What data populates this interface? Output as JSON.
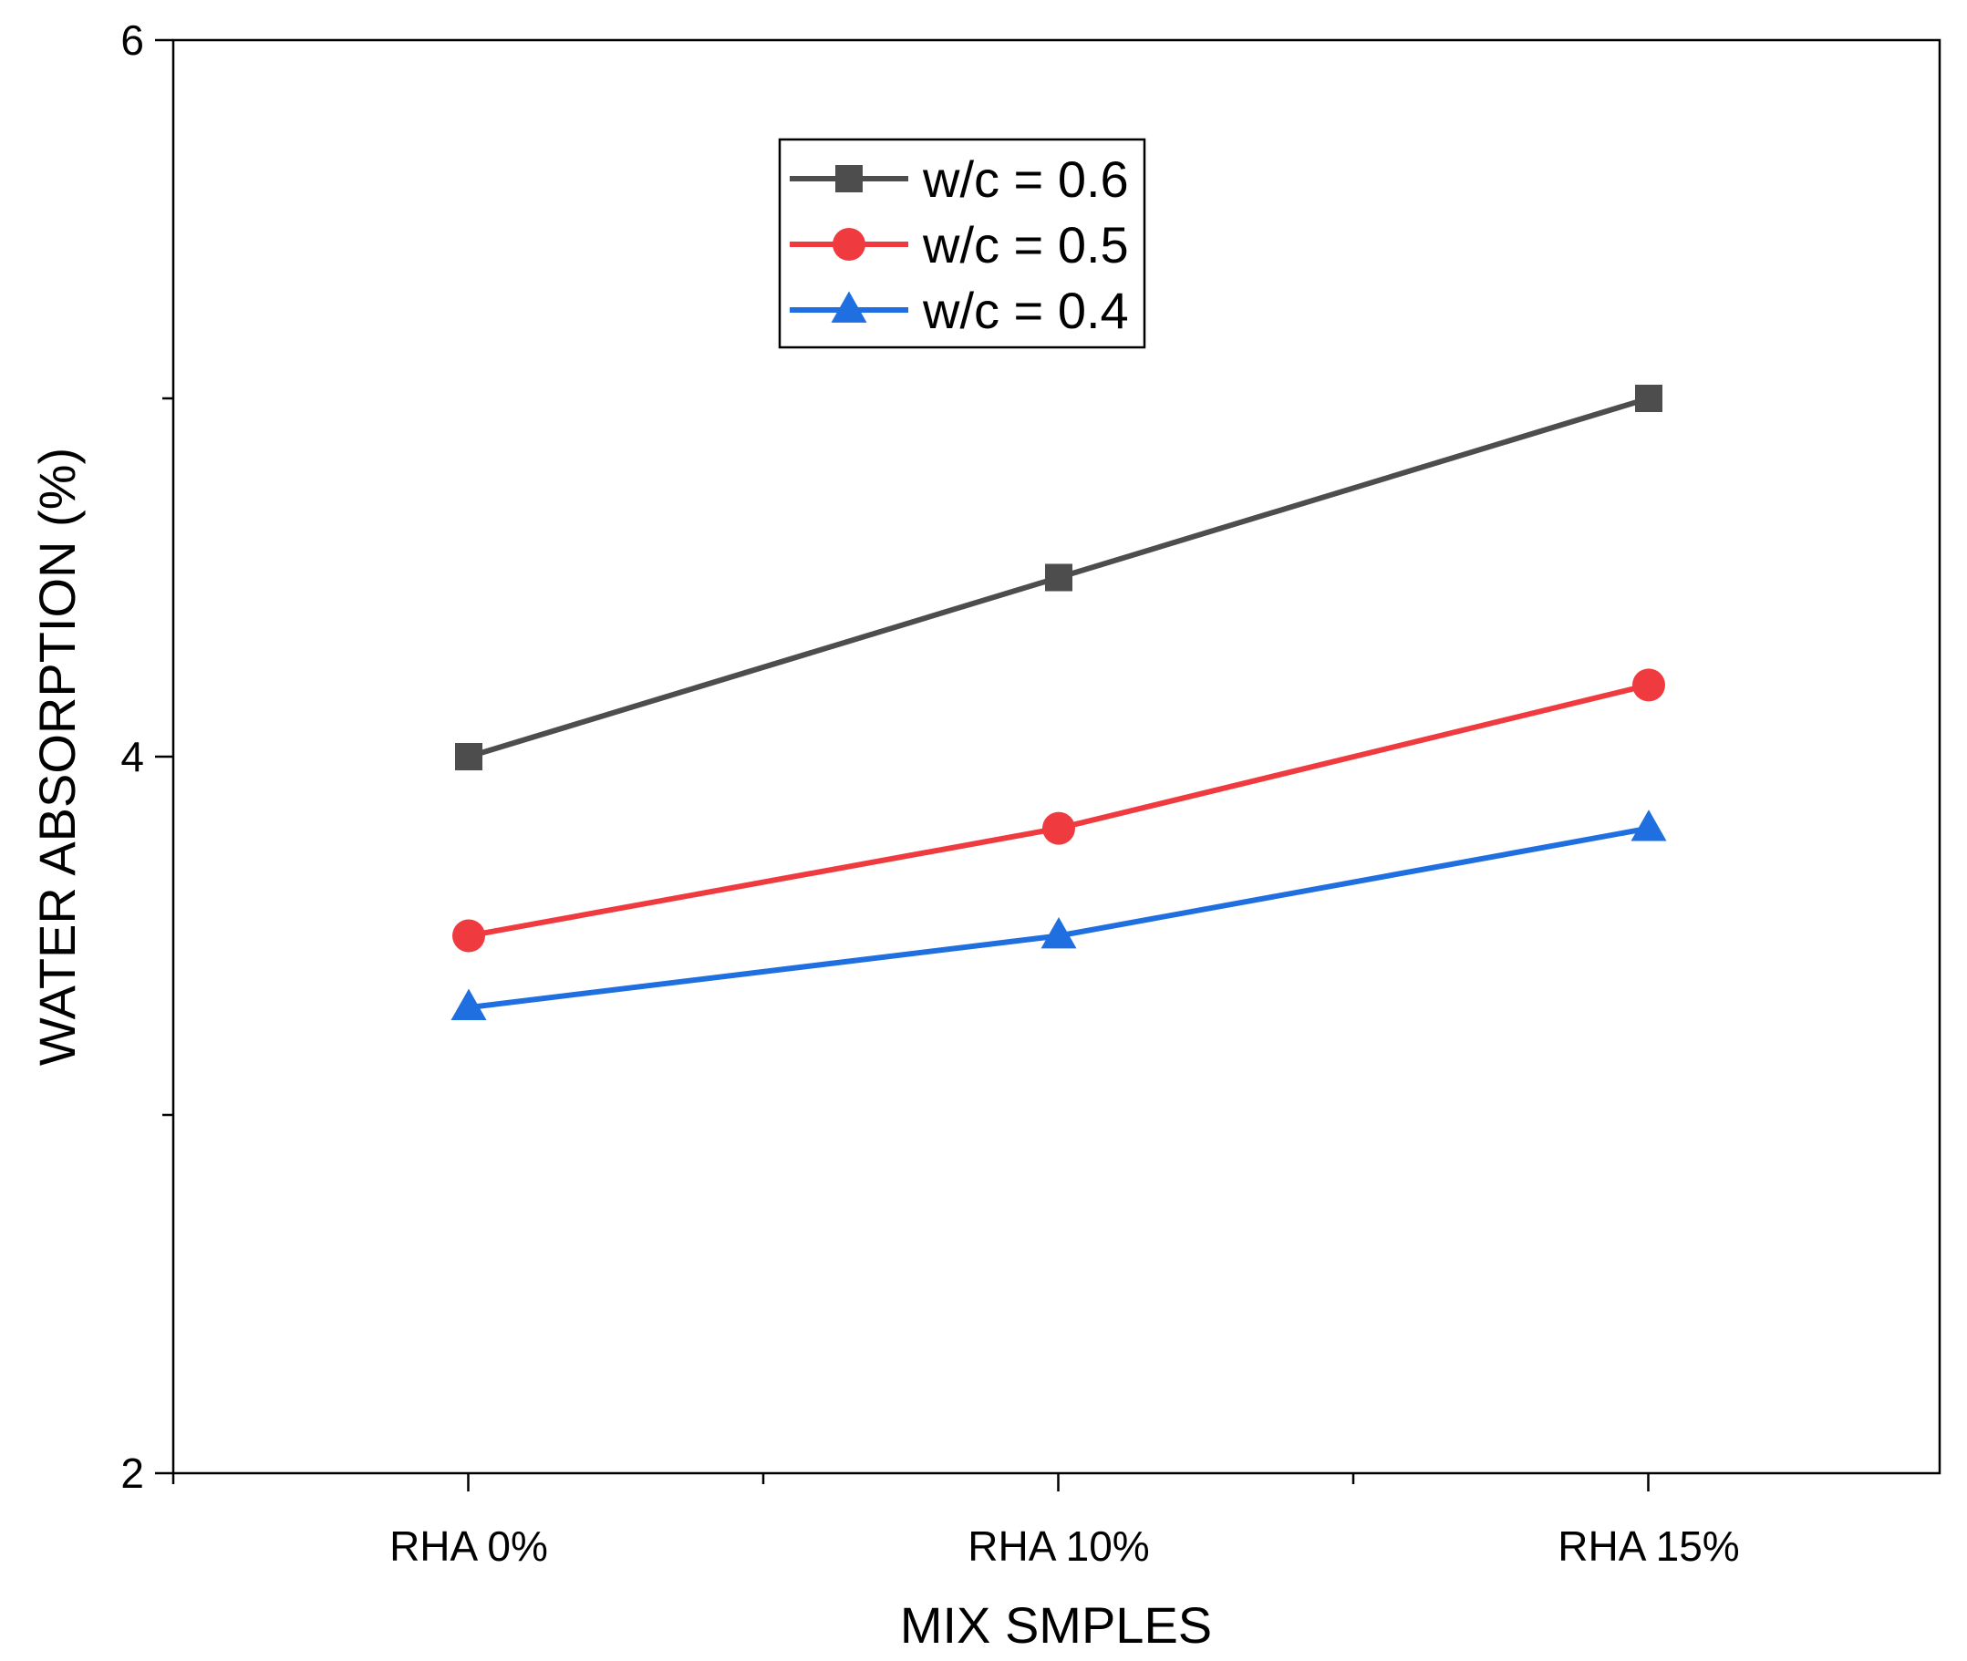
{
  "chart_data": {
    "type": "line",
    "title": "",
    "xlabel": "MIX SMPLES",
    "ylabel": "WATER ABSORPTION (%)",
    "categories": [
      "RHA 0%",
      "RHA 10%",
      "RHA 15%"
    ],
    "ylim": [
      2,
      6
    ],
    "yticks_major": [
      2,
      4,
      6
    ],
    "yticks_minor": [
      3,
      5
    ],
    "legend_position": "top-center",
    "series": [
      {
        "name": "w/c = 0.6",
        "marker": "square",
        "color": "#4d4d4d",
        "values": [
          4.0,
          4.5,
          5.0
        ]
      },
      {
        "name": "w/c = 0.5",
        "marker": "circle",
        "color": "#ef3b3f",
        "values": [
          3.5,
          3.8,
          4.2
        ]
      },
      {
        "name": "w/c = 0.4",
        "marker": "triangle",
        "color": "#1f6fe0",
        "values": [
          3.3,
          3.5,
          3.8
        ]
      }
    ]
  }
}
